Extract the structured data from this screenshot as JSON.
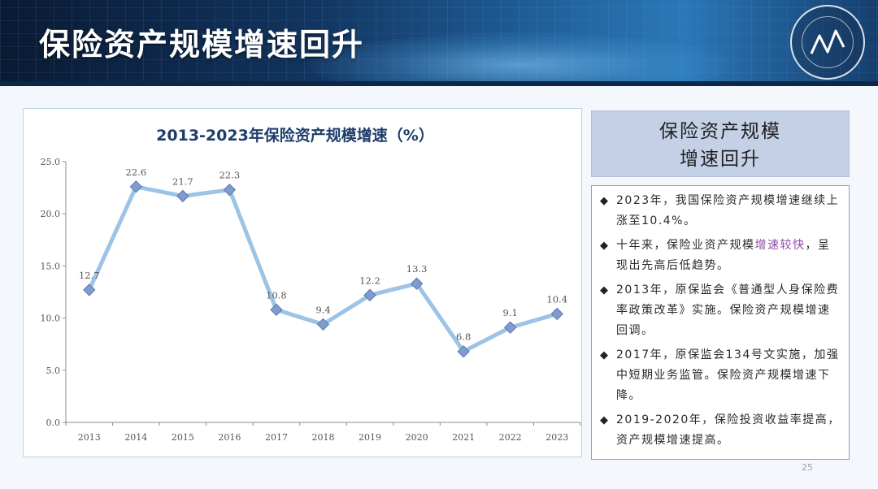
{
  "page": {
    "title": "保险资产规模增速回升",
    "page_number": "25"
  },
  "chart_data": {
    "type": "line",
    "title": "2013-2023年保险资产规模增速（%）",
    "categories": [
      "2013",
      "2014",
      "2015",
      "2016",
      "2017",
      "2018",
      "2019",
      "2020",
      "2021",
      "2022",
      "2023"
    ],
    "values": [
      12.7,
      22.6,
      21.7,
      22.3,
      10.8,
      9.4,
      12.2,
      13.3,
      6.8,
      9.1,
      10.4
    ],
    "data_labels": [
      "12.7",
      "22.6",
      "21.7",
      "22.3",
      "10.8",
      "9.4",
      "12.2",
      "13.3",
      "6.8",
      "9.1",
      "10.4"
    ],
    "y_ticks": [
      0,
      5,
      10,
      15,
      20,
      25
    ],
    "y_tick_labels": [
      "0.0",
      "5.0",
      "10.0",
      "15.0",
      "20.0",
      "25.0"
    ],
    "ylim": [
      0,
      25
    ],
    "grid": false,
    "colors": {
      "line": "#9dc3e6",
      "marker_fill": "#7f9bd0",
      "marker_stroke": "#5a78a8"
    }
  },
  "panel": {
    "heading_line1": "保险资产规模",
    "heading_line2": "增速回升",
    "bullets": [
      {
        "text": "2023年，我国保险资产规模增速继续上涨至10.4%。"
      },
      {
        "pre": "十年来，保险业资产规模",
        "highlight": "增速较快",
        "post": "，呈现出先高后低趋势。"
      },
      {
        "text": "2013年，原保监会《普通型人身保险费率政策改革》实施。保险资产规模增速回调。"
      },
      {
        "text": "2017年，原保监会134号文实施，加强中短期业务监管。保险资产规模增速下降。"
      },
      {
        "text": "2019-2020年，保险投资收益率提高，资产规模增速提高。"
      }
    ],
    "highlight_color": "#8a4fa3"
  }
}
